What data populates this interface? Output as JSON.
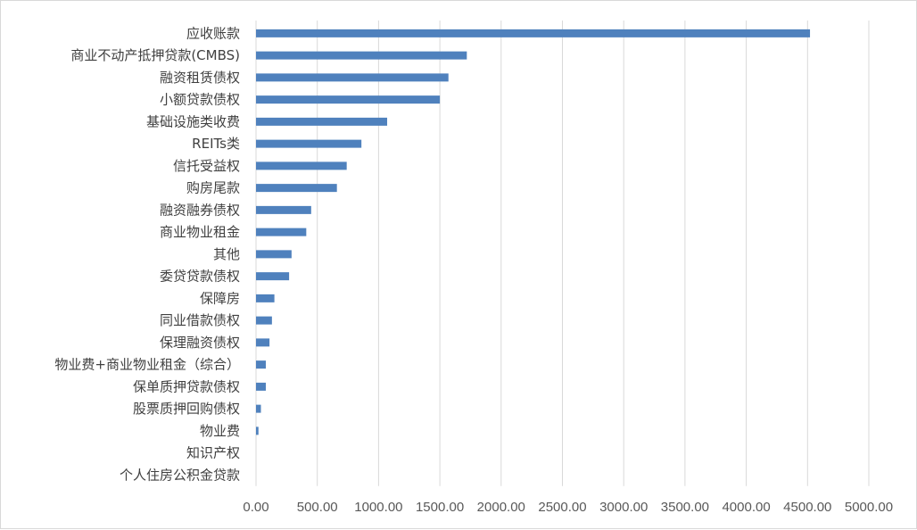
{
  "chart_data": {
    "type": "bar",
    "orientation": "horizontal",
    "title": "",
    "xlabel": "",
    "ylabel": "",
    "categories": [
      "应收账款",
      "商业不动产抵押贷款(CMBS)",
      "融资租赁债权",
      "小额贷款债权",
      "基础设施类收费",
      "REITs类",
      "信托受益权",
      "购房尾款",
      "融资融券债权",
      "商业物业租金",
      "其他",
      "委贷贷款债权",
      "保障房",
      "同业借款债权",
      "保理融资债权",
      "物业费+商业物业租金（综合）",
      "保单质押贷款债权",
      "股票质押回购债权",
      "物业费",
      "知识产权",
      "个人住房公积金贷款"
    ],
    "values": [
      4520,
      1720,
      1570,
      1500,
      1070,
      860,
      740,
      660,
      450,
      410,
      290,
      270,
      150,
      130,
      110,
      80,
      80,
      40,
      20,
      0,
      0
    ],
    "xlim": [
      0,
      5000
    ],
    "xticks": [
      "0.00",
      "500.00",
      "1000.00",
      "1500.00",
      "2000.00",
      "2500.00",
      "3000.00",
      "3500.00",
      "4000.00",
      "4500.00",
      "5000.00"
    ],
    "grid": "vertical",
    "legend": "none",
    "bar_color": "#4f81bd",
    "grid_color": "#d9d9d9"
  }
}
